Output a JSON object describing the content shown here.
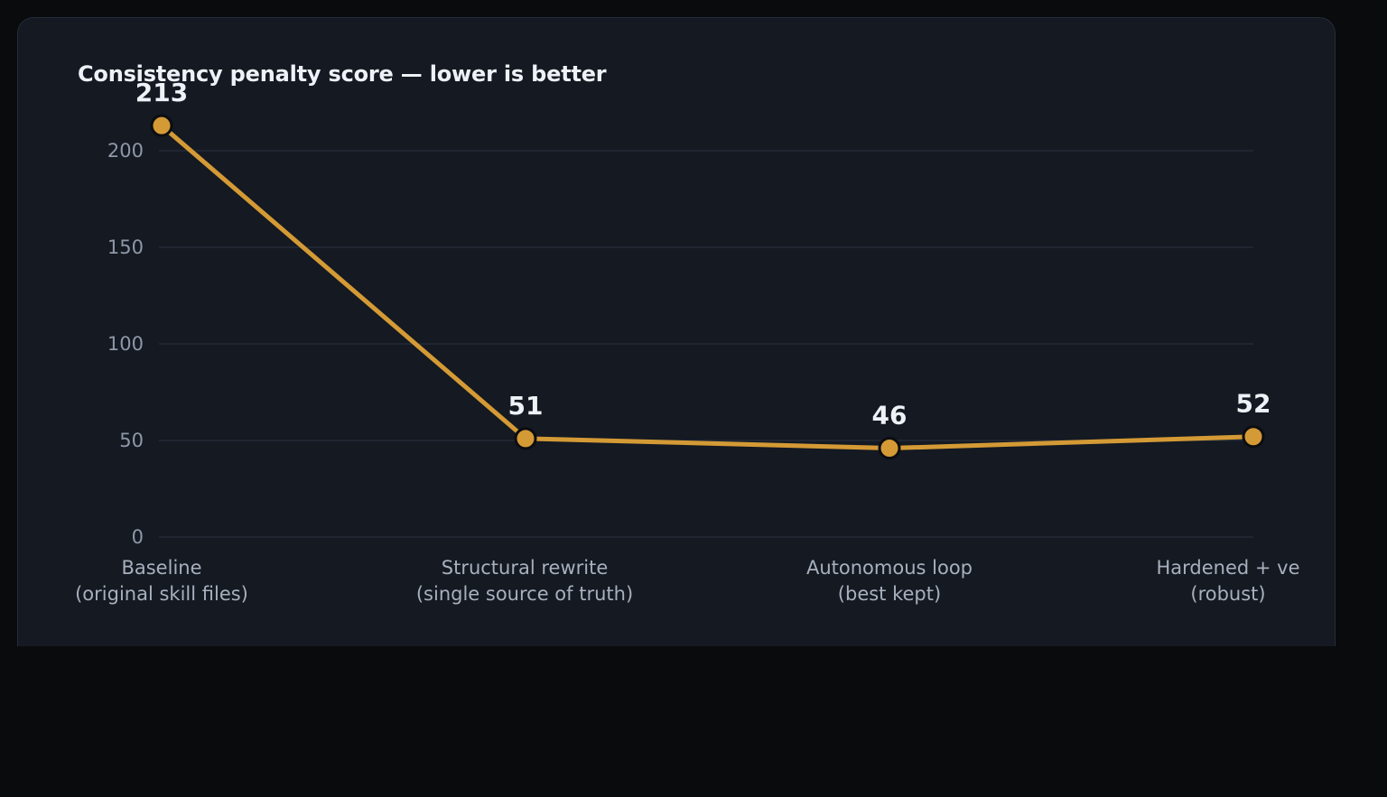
{
  "chart_data": {
    "type": "line",
    "title": "Consistency penalty score — lower is better",
    "categories": [
      [
        "Baseline",
        "(original skill files)"
      ],
      [
        "Structural rewrite",
        "(single source of truth)"
      ],
      [
        "Autonomous loop",
        "(best kept)"
      ],
      [
        "Hardened + ve",
        "(robust)"
      ]
    ],
    "series": [
      {
        "values": [
          213,
          51,
          46,
          52
        ]
      }
    ],
    "data_labels": [
      "213",
      "51",
      "46",
      "52"
    ],
    "yticks": [
      0,
      50,
      100,
      150,
      200
    ],
    "ytick_labels": [
      "0",
      "50",
      "100",
      "150",
      "200"
    ],
    "ylim": [
      0,
      200
    ],
    "grid": true,
    "legend": "none",
    "colors": {
      "line": "#d49a35",
      "marker_outline": "#0b0d11",
      "grid": "#242b36"
    }
  }
}
